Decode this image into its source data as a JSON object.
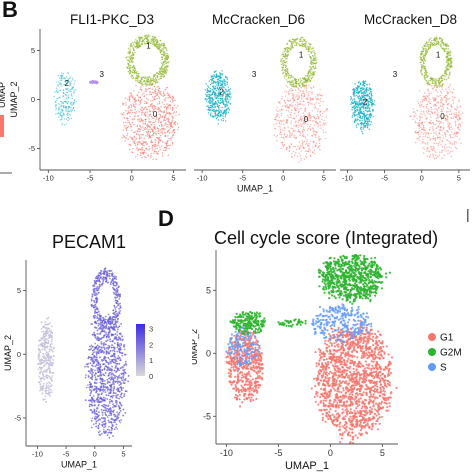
{
  "figure": {
    "panel_B_letter": "B",
    "panel_D_letter": "D",
    "cut_mark": "|"
  },
  "chart_data": [
    {
      "type": "scatter",
      "id": "B-FLI1-PKC_D3",
      "title": "FLI1-PKC_D3",
      "ylabel": "UMAP_2",
      "xlim": [
        -11,
        6.5
      ],
      "ylim": [
        -7.2,
        7.2
      ],
      "xticks": [
        -10,
        -5,
        0,
        5
      ],
      "yticks": [
        -5,
        0,
        5
      ],
      "cluster_labels": [
        {
          "text": "0",
          "x": 2.8,
          "y": -1.8
        },
        {
          "text": "1",
          "x": 2.0,
          "y": 5.2
        },
        {
          "text": "2",
          "x": -7.8,
          "y": 1.4
        },
        {
          "text": "3",
          "x": -3.6,
          "y": 2.3
        }
      ]
    },
    {
      "type": "scatter",
      "id": "B-McCracken_D6",
      "title": "McCracken_D6",
      "xlabel": "UMAP_1",
      "xlim": [
        -11,
        6.5
      ],
      "ylim": [
        -7.2,
        7.2
      ],
      "xticks": [
        -10,
        -5,
        0,
        5
      ],
      "cluster_labels": [
        {
          "text": "0",
          "x": 2.8,
          "y": -2.3
        },
        {
          "text": "1",
          "x": 2.2,
          "y": 4.3
        },
        {
          "text": "2",
          "x": -7.6,
          "y": 0.5
        },
        {
          "text": "3",
          "x": -3.6,
          "y": 2.3
        }
      ]
    },
    {
      "type": "scatter",
      "id": "B-McCracken_D8",
      "title": "McCracken_D8",
      "xlim": [
        -11,
        6.5
      ],
      "ylim": [
        -7.2,
        7.2
      ],
      "xticks": [
        -10,
        -5,
        0,
        5
      ],
      "cluster_labels": [
        {
          "text": "0",
          "x": 2.8,
          "y": -2.0
        },
        {
          "text": "1",
          "x": 2.2,
          "y": 4.3
        },
        {
          "text": "2",
          "x": -7.6,
          "y": -0.5
        },
        {
          "text": "3",
          "x": -3.6,
          "y": 2.3
        }
      ]
    },
    {
      "type": "scatter",
      "id": "C-PECAM1",
      "title": "PECAM1",
      "xlabel": "UMAP_1",
      "ylabel": "UMAP_2",
      "xlim": [
        -12,
        6.5
      ],
      "ylim": [
        -7.2,
        7.4
      ],
      "xticks": [
        -10,
        -5,
        0,
        5
      ],
      "yticks": [
        -5,
        0,
        5
      ],
      "colorbar": {
        "ticks": [
          3,
          2,
          1,
          0
        ],
        "low": "#d9d9d9",
        "high": "#3b2de0"
      }
    },
    {
      "type": "scatter",
      "id": "D-CellCycle",
      "title": "Cell cycle score (Integrated)",
      "xlabel": "UMAP_1",
      "ylabel": "UMAP_2",
      "xlim": [
        -11,
        6.5
      ],
      "ylim": [
        -7.2,
        8.2
      ],
      "xticks": [
        -10,
        -5,
        0,
        5
      ],
      "yticks": [
        -5,
        0,
        5
      ],
      "legend": [
        {
          "name": "G1",
          "color": "#f8766d"
        },
        {
          "name": "G2M",
          "color": "#2db42f"
        },
        {
          "name": "S",
          "color": "#619cff"
        }
      ],
      "legend_position": "right"
    }
  ],
  "colors": {
    "cluster0": "#f8766d",
    "cluster1": "#93b934",
    "cluster2": "#1fb5c8",
    "cluster3": "#b48ee6",
    "axis": "#555555"
  }
}
